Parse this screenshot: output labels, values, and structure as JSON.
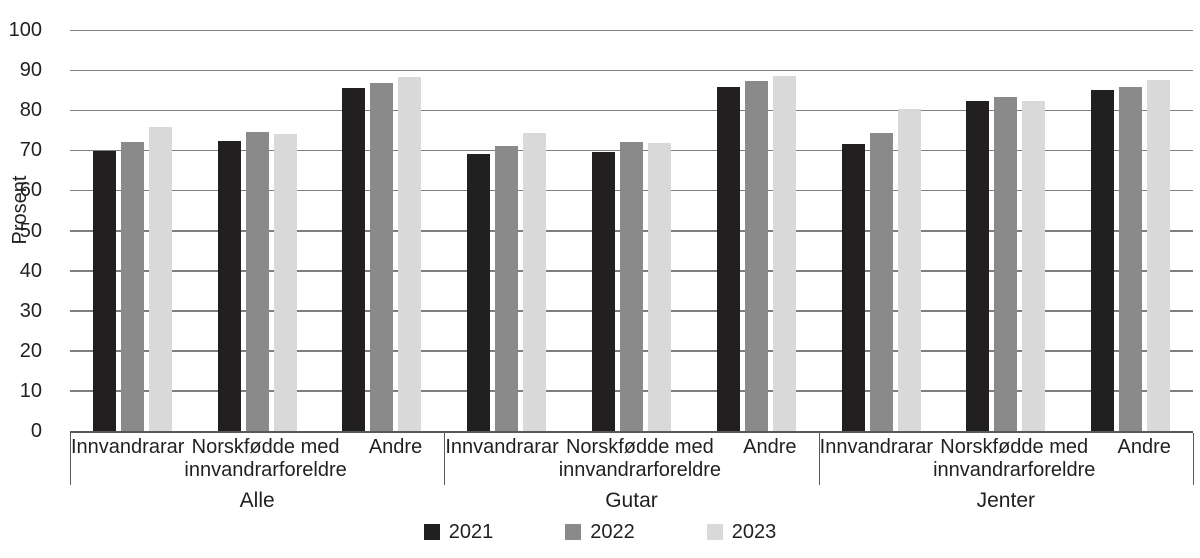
{
  "colors": {
    "background": "#ffffff",
    "text": "#231f20",
    "gridline": "#7f7f7f",
    "axis": "#595959",
    "separator": "#595959"
  },
  "chart_data": {
    "type": "bar",
    "title": "",
    "ylabel": "Prosent",
    "xlabel": "",
    "ylim": [
      0,
      100
    ],
    "ytick_step": 10,
    "ytick_labels": [
      "0",
      "10",
      "20",
      "30",
      "40",
      "50",
      "60",
      "70",
      "80",
      "90",
      "100"
    ],
    "grid": true,
    "legend_position": "bottom",
    "series": [
      {
        "name": "2021",
        "color": "#221f20"
      },
      {
        "name": "2022",
        "color": "#8a8a8a"
      },
      {
        "name": "2023",
        "color": "#d9d9d9"
      }
    ],
    "groups": [
      {
        "label": "Alle",
        "categories": [
          {
            "label": "Innvandrarar",
            "label_lines": [
              "Innvandrarar"
            ],
            "values": [
              69.8,
              72.0,
              75.8
            ]
          },
          {
            "label": "Norskfødde med innvandrarforeldre",
            "label_lines": [
              "Norskfødde med",
              "innvandrarforeldre"
            ],
            "values": [
              72.4,
              74.5,
              74.0
            ]
          },
          {
            "label": "Andre",
            "label_lines": [
              "Andre"
            ],
            "values": [
              85.5,
              86.9,
              88.3
            ]
          }
        ]
      },
      {
        "label": "Gutar",
        "categories": [
          {
            "label": "Innvandrarar",
            "label_lines": [
              "Innvandrarar"
            ],
            "values": [
              69.0,
              71.1,
              74.2
            ]
          },
          {
            "label": "Norskfødde med innvandrarforeldre",
            "label_lines": [
              "Norskfødde med",
              "innvandrarforeldre"
            ],
            "values": [
              69.6,
              72.0,
              71.8
            ]
          },
          {
            "label": "Andre",
            "label_lines": [
              "Andre"
            ],
            "values": [
              85.9,
              87.2,
              88.6
            ]
          }
        ]
      },
      {
        "label": "Jenter",
        "categories": [
          {
            "label": "Innvandrarar",
            "label_lines": [
              "Innvandrarar"
            ],
            "values": [
              71.5,
              74.3,
              80.4
            ]
          },
          {
            "label": "Norskfødde med innvandrarforeldre",
            "label_lines": [
              "Norskfødde med",
              "innvandrarforeldre"
            ],
            "values": [
              82.4,
              83.2,
              82.2
            ]
          },
          {
            "label": "Andre",
            "label_lines": [
              "Andre"
            ],
            "values": [
              85.0,
              85.8,
              87.5
            ]
          }
        ]
      }
    ]
  }
}
